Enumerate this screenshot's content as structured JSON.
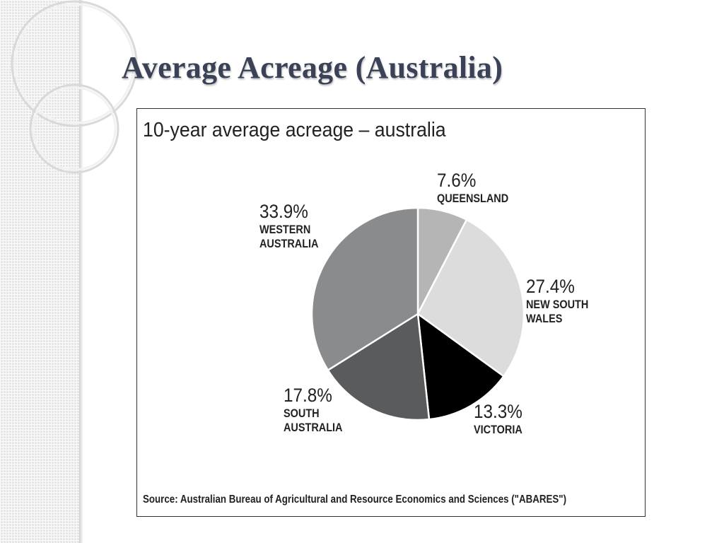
{
  "slide": {
    "title": "Average Acreage (Australia)"
  },
  "chart_data": {
    "type": "pie",
    "title": "10-year average acreage – australia",
    "unit": "%",
    "slices": [
      {
        "name": "QUEENSLAND",
        "value": 7.6,
        "label": "7.6%",
        "color": "#b5b5b5"
      },
      {
        "name": "NEW SOUTH WALES",
        "value": 27.4,
        "label": "27.4%",
        "color": "#dcdcdc"
      },
      {
        "name": "VICTORIA",
        "value": 13.3,
        "label": "13.3%",
        "color": "#000000"
      },
      {
        "name": "SOUTH AUSTRALIA",
        "value": 17.8,
        "label": "17.8%",
        "color": "#5a5b5d"
      },
      {
        "name": "WESTERN AUSTRALIA",
        "value": 33.9,
        "label": "33.9%",
        "color": "#8a8b8d"
      }
    ],
    "source": "Source: Australian Bureau of Agricultural and Resource Economics and Sciences (\"ABARES\")"
  }
}
